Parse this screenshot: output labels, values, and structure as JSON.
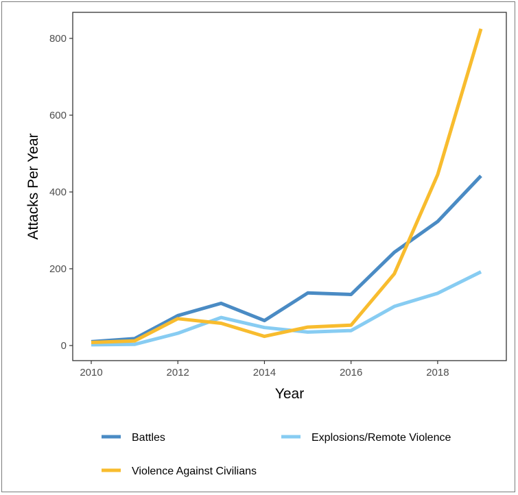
{
  "chart_data": {
    "type": "line",
    "title": "",
    "xlabel": "Year",
    "ylabel": "Attacks Per Year",
    "x": [
      2010,
      2011,
      2012,
      2013,
      2014,
      2015,
      2016,
      2017,
      2018,
      2019
    ],
    "xlim": [
      2009.6,
      2019.4
    ],
    "ylim": [
      -30,
      860
    ],
    "x_ticks": [
      2010,
      2012,
      2014,
      2016,
      2018
    ],
    "y_ticks": [
      0,
      200,
      400,
      600,
      800
    ],
    "x_tick_labels": [
      "2010",
      "2012",
      "2014",
      "2016",
      "2018"
    ],
    "y_tick_labels": [
      "0",
      "200",
      "400",
      "600",
      "800"
    ],
    "grid": false,
    "legend_position": "bottom",
    "series": [
      {
        "name": "Battles",
        "color": "#4a8bc4",
        "values": [
          10,
          18,
          78,
          110,
          65,
          137,
          133,
          243,
          323,
          442
        ]
      },
      {
        "name": "Explosions/Remote Violence",
        "color": "#87ccf2",
        "values": [
          2,
          3,
          32,
          73,
          47,
          35,
          39,
          102,
          136,
          192
        ]
      },
      {
        "name": "Violence Against Civilians",
        "color": "#f8bc2e",
        "values": [
          8,
          12,
          70,
          58,
          24,
          48,
          53,
          187,
          445,
          825
        ]
      }
    ]
  }
}
